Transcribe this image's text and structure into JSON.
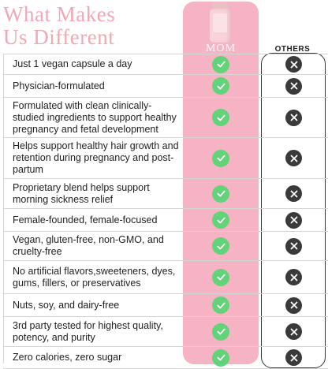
{
  "title": {
    "line1": "What Makes",
    "line2": "Us Different"
  },
  "columns": {
    "brand": "MOM",
    "others": "OTHERS"
  },
  "colors": {
    "brand_column": "#f6b3c3",
    "title": "#f2a7b5",
    "check": "#63d37a",
    "cross": "#3a3a3a"
  },
  "icons": {
    "yes": "check-circle-icon",
    "no": "x-circle-icon",
    "product": "supplement-bottle-icon"
  },
  "rows": [
    {
      "text": "Just 1 vegan capsule a day",
      "mom": true,
      "others": false
    },
    {
      "text": "Physician-formulated",
      "mom": true,
      "others": false
    },
    {
      "text": "Formulated with clean clinically-studied ingredients to support healthy pregnancy and fetal development",
      "mom": true,
      "others": false
    },
    {
      "text": "Helps support healthy hair growth and retention during pregnancy and post-partum",
      "mom": true,
      "others": false
    },
    {
      "text": "Proprietary blend helps support morning sickness relief",
      "mom": true,
      "others": false
    },
    {
      "text": "Female-founded, female-focused",
      "mom": true,
      "others": false
    },
    {
      "text": "Vegan, gluten-free, non-GMO, and cruelty-free",
      "mom": true,
      "others": false
    },
    {
      "text": "No artificial flavors,sweeteners, dyes, gums, fillers, or preservatives",
      "mom": true,
      "others": false
    },
    {
      "text": "Nuts, soy, and dairy-free",
      "mom": true,
      "others": false
    },
    {
      "text": "3rd party tested for highest quality, potency, and purity",
      "mom": true,
      "others": false
    },
    {
      "text": "Zero calories, zero sugar",
      "mom": true,
      "others": false
    }
  ]
}
